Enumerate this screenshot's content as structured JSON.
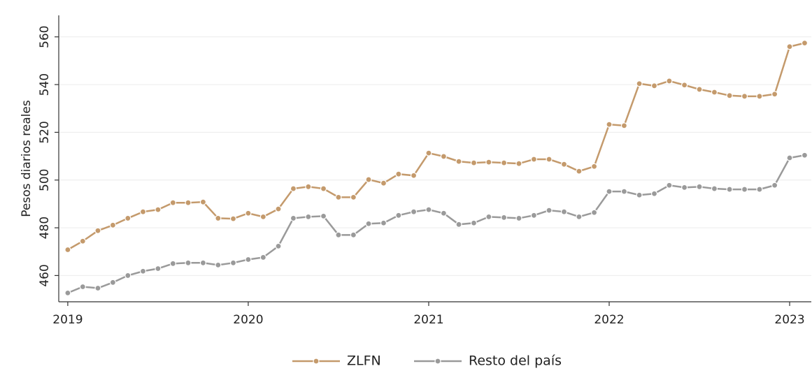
{
  "chart_data": {
    "type": "line",
    "ylabel": "Pesos diarios reales",
    "x": [
      2019,
      2019.083,
      2019.167,
      2019.25,
      2019.333,
      2019.417,
      2019.5,
      2019.583,
      2019.667,
      2019.75,
      2019.833,
      2019.917,
      2020,
      2020.083,
      2020.167,
      2020.25,
      2020.333,
      2020.417,
      2020.5,
      2020.583,
      2020.667,
      2020.75,
      2020.833,
      2020.917,
      2021,
      2021.083,
      2021.167,
      2021.25,
      2021.333,
      2021.417,
      2021.5,
      2021.583,
      2021.667,
      2021.75,
      2021.833,
      2021.917,
      2022,
      2022.083,
      2022.167,
      2022.25,
      2022.333,
      2022.417,
      2022.5,
      2022.583,
      2022.667,
      2022.75,
      2022.833,
      2022.917,
      2023,
      2023.083
    ],
    "series": [
      {
        "name": "ZLFN",
        "color": "#c49a6c",
        "values": [
          470.8,
          474.4,
          478.8,
          481.1,
          484.0,
          486.7,
          487.6,
          490.5,
          490.5,
          490.8,
          484.0,
          483.8,
          486.1,
          484.6,
          487.9,
          496.4,
          497.2,
          496.4,
          492.8,
          492.8,
          500.2,
          498.7,
          502.5,
          501.9,
          511.3,
          509.9,
          507.8,
          507.2,
          507.5,
          507.2,
          506.9,
          508.7,
          508.7,
          506.6,
          503.7,
          505.7,
          523.3,
          522.8,
          540.4,
          539.5,
          541.5,
          539.8,
          538.0,
          536.8,
          535.4,
          535.1,
          535.1,
          536.0,
          555.9,
          557.4
        ]
      },
      {
        "name": "Resto del país",
        "color": "#9a9a9a",
        "values": [
          452.7,
          455.3,
          454.7,
          457.1,
          460.0,
          461.8,
          462.9,
          465.0,
          465.3,
          465.3,
          464.4,
          465.3,
          466.7,
          467.6,
          472.3,
          484.0,
          484.6,
          484.9,
          477.0,
          477.0,
          481.7,
          482.0,
          485.2,
          486.7,
          487.6,
          486.1,
          481.4,
          482.0,
          484.6,
          484.3,
          484.0,
          485.2,
          487.3,
          486.7,
          484.6,
          486.4,
          495.2,
          495.2,
          493.7,
          494.3,
          497.8,
          496.9,
          497.2,
          496.4,
          496.1,
          496.1,
          496.1,
          497.8,
          509.3,
          510.4
        ]
      }
    ],
    "xlim": [
      2018.95,
      2023.12
    ],
    "xticks": [
      2019,
      2020,
      2021,
      2022,
      2023
    ],
    "ylim": [
      449,
      569
    ],
    "yticks": [
      460,
      480,
      500,
      520,
      540,
      560
    ],
    "grid": true,
    "legend": "bottom"
  }
}
